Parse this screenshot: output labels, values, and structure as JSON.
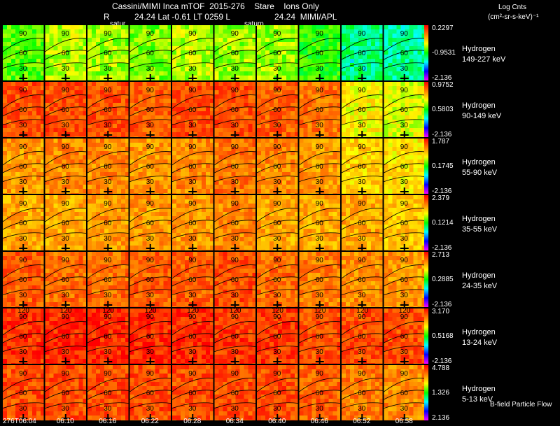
{
  "header": {
    "line1": "Cassini/MIMI Inca mTOF  2015-276    Stare    Ions Only",
    "line2_left": "R",
    "line2_mid": "24.24 Lat -0.61 LT 0259 L",
    "line2_right": "24.24  MIMI/APL",
    "saturn_label_1": "satur",
    "saturn_label_2": "saturn",
    "units_title": "Log Cnts",
    "units": "(cm²-sr-s-keV)⁻¹"
  },
  "footer": {
    "bfield_label": "B-field Particle Flow"
  },
  "colors": {
    "scale": [
      "#ff00ff",
      "#0000ff",
      "#00ffff",
      "#00ff00",
      "#ffff00",
      "#ff8000",
      "#ff0000"
    ]
  },
  "chart_data": {
    "type": "heatmap",
    "x": [
      "276T06:04",
      "06:10",
      "06:16",
      "06:22",
      "06:28",
      "06:34",
      "06:40",
      "06:46",
      "06:52",
      "06:58"
    ],
    "rows": [
      {
        "species": "Hydrogen",
        "energy": "149-227 keV",
        "max": "0.2297",
        "mid": "-0.9531",
        "min": "-2.136",
        "levels": [
          0.55,
          0.62,
          0.6,
          0.58,
          0.62,
          0.6,
          0.6,
          0.52,
          0.42,
          0.4
        ]
      },
      {
        "species": "Hydrogen",
        "energy": "90-149 keV",
        "max": "0.9752",
        "mid": "0.5803",
        "min": "-2.136",
        "levels": [
          0.9,
          0.9,
          0.9,
          0.88,
          0.9,
          0.9,
          0.88,
          0.85,
          0.68,
          0.65
        ]
      },
      {
        "species": "Hydrogen",
        "energy": "55-90 keV",
        "max": "1.787",
        "mid": "0.1745",
        "min": "-2.136",
        "levels": [
          0.8,
          0.82,
          0.82,
          0.8,
          0.82,
          0.85,
          0.82,
          0.8,
          0.72,
          0.7
        ]
      },
      {
        "species": "Hydrogen",
        "energy": "35-55 keV",
        "max": "2.379",
        "mid": "0.1214",
        "min": "-2.136",
        "levels": [
          0.78,
          0.78,
          0.8,
          0.8,
          0.8,
          0.82,
          0.78,
          0.78,
          0.78,
          0.74
        ]
      },
      {
        "species": "Hydrogen",
        "energy": "24-35 keV",
        "max": "2.713",
        "mid": "0.2885",
        "min": "-2.136",
        "levels": [
          0.88,
          0.86,
          0.86,
          0.88,
          0.88,
          0.9,
          0.86,
          0.84,
          0.82,
          0.8
        ]
      },
      {
        "species": "Hydrogen",
        "energy": "13-24 keV",
        "max": "3.170",
        "mid": "0.5168",
        "min": "-2.136",
        "levels": [
          0.94,
          0.95,
          0.95,
          0.95,
          0.95,
          0.93,
          0.93,
          0.9,
          0.9,
          0.9
        ]
      },
      {
        "species": "Hydrogen",
        "energy": "5-13 keV",
        "max": "4.788",
        "mid": "1.326",
        "min": "2.136",
        "levels": [
          0.9,
          0.9,
          0.9,
          0.9,
          0.9,
          0.9,
          0.9,
          0.87,
          0.84,
          0.82
        ]
      }
    ],
    "contour_labels": [
      "120",
      "90",
      "60",
      "30"
    ]
  }
}
